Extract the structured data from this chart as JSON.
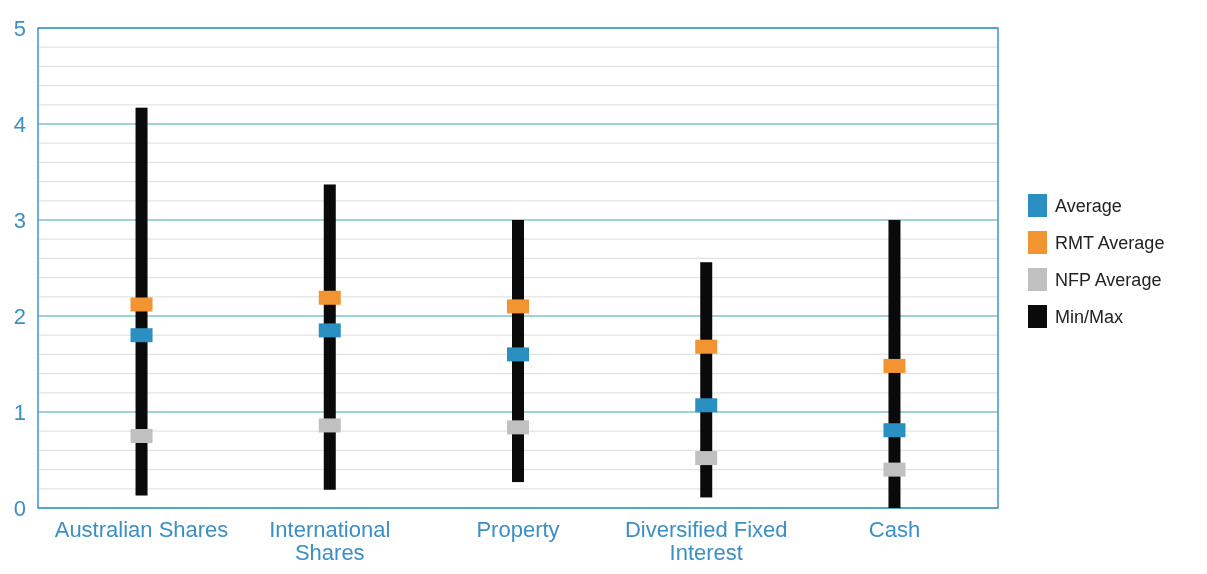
{
  "chart_data": {
    "type": "bar",
    "categories": [
      "Australian Shares",
      "International Shares",
      "Property",
      "Diversified Fixed Interest",
      "Cash"
    ],
    "series": [
      {
        "name": "Average",
        "type": "scatter",
        "color": "#2a8fc1",
        "values": [
          1.8,
          1.85,
          1.6,
          1.07,
          0.81
        ]
      },
      {
        "name": "RMT Average",
        "type": "scatter",
        "color": "#f39433",
        "values": [
          2.12,
          2.19,
          2.1,
          1.68,
          1.48
        ]
      },
      {
        "name": "NFP Average",
        "type": "scatter",
        "color": "#c0c0c0",
        "values": [
          0.75,
          0.86,
          0.84,
          0.52,
          0.4
        ]
      },
      {
        "name": "Min/Max",
        "color": "#0a0a0a",
        "base": [
          0.13,
          0.19,
          0.27,
          0.11,
          0
        ],
        "values": [
          4.04,
          3.18,
          2.73,
          2.45,
          3.0
        ]
      }
    ],
    "ylim": [
      0,
      5
    ],
    "yticks": [
      0,
      {
        "value": 0.2,
        "label": null
      },
      {
        "value": 0.4,
        "label": null
      },
      {
        "value": 0.6,
        "label": null
      },
      {
        "value": 0.8,
        "label": null
      },
      1,
      {
        "value": 1.2,
        "label": null
      },
      {
        "value": 1.4,
        "label": null
      },
      {
        "value": 1.6,
        "label": null
      },
      {
        "value": 1.8,
        "label": null
      },
      2,
      {
        "value": 2.2,
        "label": null
      },
      {
        "value": 2.4,
        "label": null
      },
      {
        "value": 2.6,
        "label": null
      },
      {
        "value": 2.8,
        "label": null
      },
      3,
      {
        "value": 3.2,
        "label": null
      },
      {
        "value": 3.4,
        "label": null
      },
      {
        "value": 3.6,
        "label": null
      },
      {
        "value": 3.8,
        "label": null
      },
      4,
      {
        "value": 4.2,
        "label": null
      },
      {
        "value": 4.4,
        "label": null
      },
      {
        "value": 4.6,
        "label": null
      },
      {
        "value": 4.8,
        "label": null
      },
      5
    ],
    "grid": "y",
    "legend": "right",
    "marker": "square"
  }
}
